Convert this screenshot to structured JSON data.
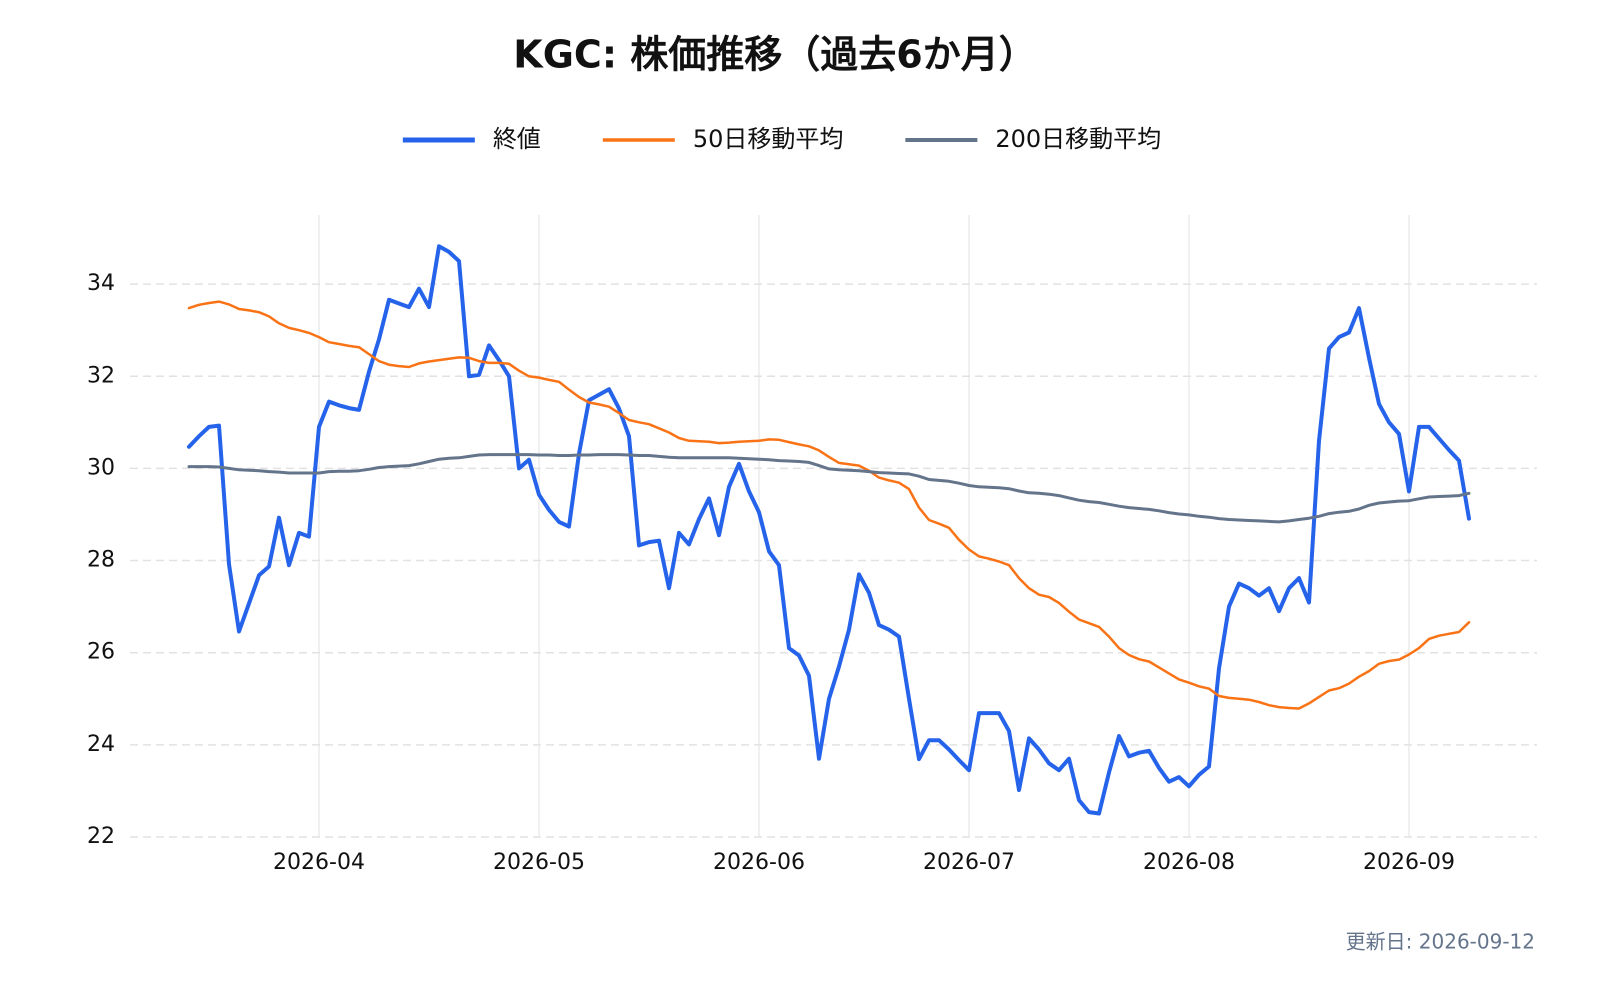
{
  "chart_data": {
    "type": "line",
    "title": "KGC: 株価推移（過去6か月）",
    "footnote": "更新日: 2026-09-12",
    "legend": "top",
    "grid": true,
    "ylim": [
      22,
      35.5
    ],
    "yticks": [
      22,
      24,
      26,
      28,
      30,
      32,
      34
    ],
    "categories": [
      null,
      null,
      null,
      null,
      null,
      null,
      null,
      null,
      null,
      null,
      null,
      null,
      null,
      "2026-04",
      null,
      null,
      null,
      null,
      null,
      null,
      null,
      null,
      null,
      null,
      null,
      null,
      null,
      null,
      null,
      null,
      null,
      null,
      null,
      null,
      null,
      "2026-05",
      null,
      null,
      null,
      null,
      null,
      null,
      null,
      null,
      null,
      null,
      null,
      null,
      null,
      null,
      null,
      null,
      null,
      null,
      null,
      null,
      null,
      "2026-06",
      null,
      null,
      null,
      null,
      null,
      null,
      null,
      null,
      null,
      null,
      null,
      null,
      null,
      null,
      null,
      null,
      null,
      null,
      null,
      null,
      "2026-07",
      null,
      null,
      null,
      null,
      null,
      null,
      null,
      null,
      null,
      null,
      null,
      null,
      null,
      null,
      null,
      null,
      null,
      null,
      null,
      null,
      null,
      "2026-08",
      null,
      null,
      null,
      null,
      null,
      null,
      null,
      null,
      null,
      null,
      null,
      null,
      null,
      null,
      null,
      null,
      null,
      null,
      null,
      null,
      null,
      "2026-09",
      null,
      null,
      null,
      null,
      null,
      null
    ],
    "series": [
      {
        "name": "終値",
        "color": "#2563eb",
        "width": 4,
        "values": [
          30.47,
          30.7,
          30.9,
          30.93,
          27.92,
          26.46,
          27.07,
          27.68,
          27.87,
          28.93,
          27.9,
          28.6,
          28.52,
          30.9,
          31.45,
          31.37,
          31.31,
          31.27,
          32.1,
          32.8,
          33.66,
          33.58,
          33.5,
          33.9,
          33.5,
          34.82,
          34.7,
          34.5,
          32.0,
          32.03,
          32.67,
          32.35,
          32.0,
          30.0,
          30.19,
          29.43,
          29.1,
          28.84,
          28.74,
          30.32,
          31.48,
          31.6,
          31.72,
          31.3,
          30.7,
          28.33,
          28.4,
          28.43,
          27.4,
          28.6,
          28.35,
          28.9,
          29.35,
          28.55,
          29.6,
          30.1,
          29.5,
          29.05,
          28.2,
          27.9,
          26.1,
          25.94,
          25.5,
          23.7,
          25.0,
          25.7,
          26.5,
          27.7,
          27.3,
          26.6,
          26.5,
          26.35,
          25.0,
          23.69,
          24.1,
          24.1,
          23.9,
          23.67,
          23.45,
          24.69,
          24.69,
          24.69,
          24.3,
          23.02,
          24.14,
          23.9,
          23.6,
          23.45,
          23.7,
          22.8,
          22.54,
          22.51,
          23.4,
          24.19,
          23.75,
          23.83,
          23.87,
          23.5,
          23.2,
          23.3,
          23.1,
          23.35,
          23.53,
          25.66,
          27.0,
          27.5,
          27.4,
          27.24,
          27.4,
          26.9,
          27.4,
          27.62,
          27.09,
          30.6,
          32.6,
          32.85,
          32.95,
          33.48,
          32.4,
          31.4,
          31.0,
          30.75,
          29.5,
          30.9,
          30.9,
          30.65,
          30.4,
          30.17,
          28.91
        ]
      },
      {
        "name": "50日移動平均",
        "color": "#f97316",
        "width": 2.5,
        "values": [
          33.48,
          33.55,
          33.59,
          33.62,
          33.56,
          33.46,
          33.43,
          33.39,
          33.3,
          33.15,
          33.05,
          33.0,
          32.94,
          32.85,
          32.74,
          32.7,
          32.66,
          32.63,
          32.48,
          32.33,
          32.25,
          32.22,
          32.2,
          32.28,
          32.32,
          32.35,
          32.38,
          32.41,
          32.4,
          32.33,
          32.29,
          32.29,
          32.27,
          32.12,
          32.0,
          31.97,
          31.92,
          31.88,
          31.71,
          31.55,
          31.43,
          31.39,
          31.34,
          31.2,
          31.05,
          31.0,
          30.96,
          30.87,
          30.78,
          30.66,
          30.6,
          30.59,
          30.58,
          30.55,
          30.56,
          30.58,
          30.59,
          30.6,
          30.63,
          30.62,
          30.57,
          30.52,
          30.48,
          30.39,
          30.25,
          30.12,
          30.09,
          30.06,
          29.95,
          29.8,
          29.74,
          29.69,
          29.55,
          29.15,
          28.88,
          28.8,
          28.71,
          28.45,
          28.24,
          28.09,
          28.04,
          27.98,
          27.9,
          27.62,
          27.4,
          27.26,
          27.21,
          27.08,
          26.89,
          26.72,
          26.64,
          26.56,
          26.35,
          26.1,
          25.95,
          25.86,
          25.81,
          25.68,
          25.55,
          25.42,
          25.35,
          25.27,
          25.22,
          25.06,
          25.02,
          25.0,
          24.98,
          24.93,
          24.86,
          24.82,
          24.8,
          24.79,
          24.9,
          25.04,
          25.18,
          25.23,
          25.33,
          25.48,
          25.6,
          25.76,
          25.82,
          25.85,
          25.96,
          26.1,
          26.3,
          26.37,
          26.41,
          26.45,
          26.66
        ]
      },
      {
        "name": "200日移動平均",
        "color": "#64748b",
        "width": 3,
        "values": [
          30.04,
          30.04,
          30.04,
          30.03,
          30.0,
          29.97,
          29.96,
          29.95,
          29.93,
          29.92,
          29.9,
          29.9,
          29.9,
          29.9,
          29.93,
          29.94,
          29.94,
          29.95,
          29.98,
          30.02,
          30.04,
          30.05,
          30.06,
          30.1,
          30.15,
          30.2,
          30.22,
          30.23,
          30.26,
          30.29,
          30.3,
          30.3,
          30.3,
          30.3,
          30.3,
          30.29,
          30.29,
          30.28,
          30.28,
          30.29,
          30.29,
          30.3,
          30.3,
          30.3,
          30.29,
          30.28,
          30.28,
          30.26,
          30.24,
          30.23,
          30.23,
          30.23,
          30.23,
          30.23,
          30.23,
          30.22,
          30.21,
          30.2,
          30.19,
          30.17,
          30.16,
          30.15,
          30.13,
          30.06,
          29.99,
          29.97,
          29.96,
          29.95,
          29.93,
          29.91,
          29.9,
          29.89,
          29.88,
          29.83,
          29.76,
          29.74,
          29.72,
          29.68,
          29.63,
          29.6,
          29.59,
          29.58,
          29.56,
          29.51,
          29.47,
          29.46,
          29.44,
          29.41,
          29.36,
          29.31,
          29.28,
          29.26,
          29.22,
          29.18,
          29.15,
          29.13,
          29.11,
          29.08,
          29.04,
          29.01,
          28.99,
          28.96,
          28.94,
          28.91,
          28.89,
          28.88,
          28.87,
          28.86,
          28.85,
          28.84,
          28.86,
          28.89,
          28.92,
          28.96,
          29.02,
          29.05,
          29.07,
          29.12,
          29.2,
          29.25,
          29.27,
          29.29,
          29.3,
          29.34,
          29.38,
          29.39,
          29.4,
          29.41,
          29.46
        ]
      }
    ]
  }
}
